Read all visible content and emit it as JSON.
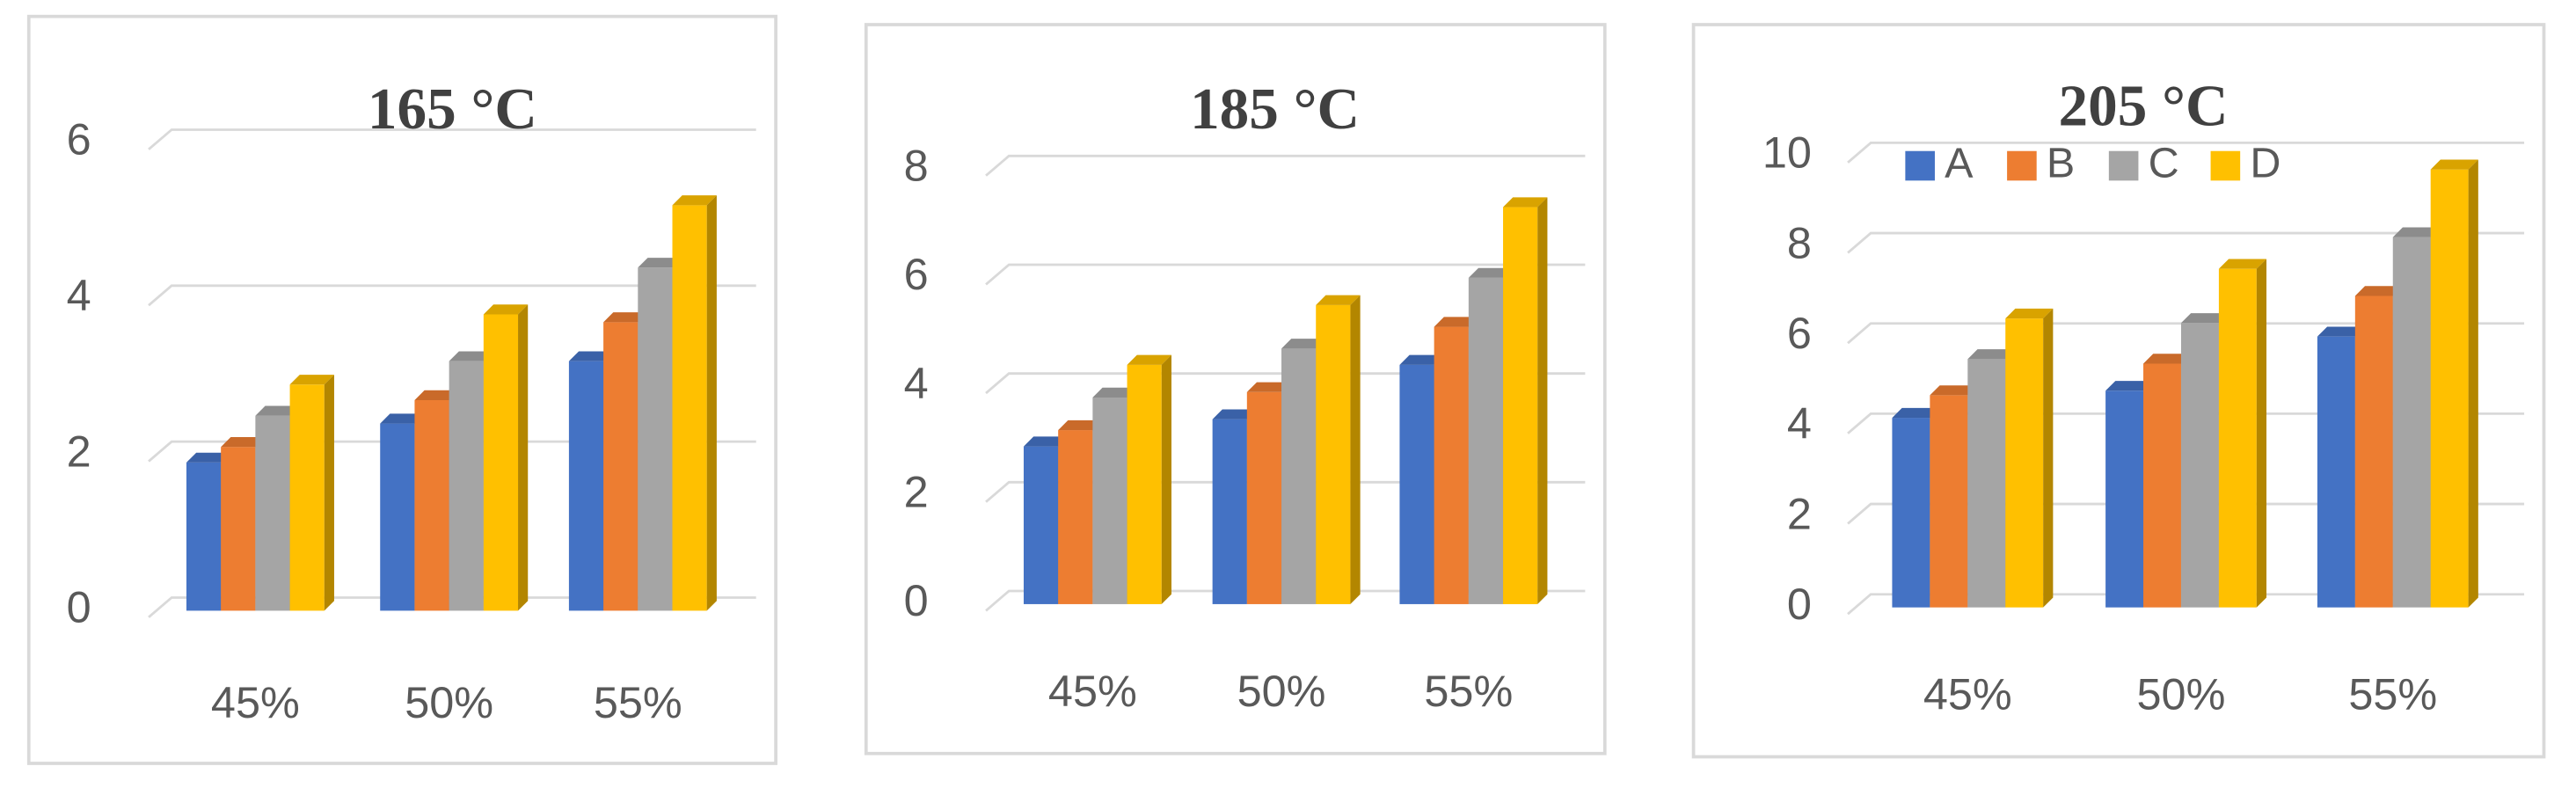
{
  "chart_data": [
    {
      "type": "bar",
      "title": "165 °C",
      "categories": [
        "45%",
        "50%",
        "55%"
      ],
      "series": [
        {
          "color": "#4472c4",
          "values": [
            1.9,
            2.4,
            3.2
          ]
        },
        {
          "color": "#ed7d31",
          "values": [
            2.1,
            2.7,
            3.7
          ]
        },
        {
          "color": "#a5a5a5",
          "values": [
            2.5,
            3.2,
            4.4
          ]
        },
        {
          "color": "#ffc000",
          "values": [
            2.9,
            3.8,
            5.2
          ]
        }
      ],
      "ylim": [
        0,
        6
      ],
      "yticks": [
        0,
        2,
        4,
        6
      ],
      "grid": true
    },
    {
      "type": "bar",
      "title": "185 °C",
      "categories": [
        "45%",
        "50%",
        "55%"
      ],
      "series": [
        {
          "color": "#4472c4",
          "values": [
            2.9,
            3.4,
            4.4
          ]
        },
        {
          "color": "#ed7d31",
          "values": [
            3.2,
            3.9,
            5.1
          ]
        },
        {
          "color": "#a5a5a5",
          "values": [
            3.8,
            4.7,
            6.0
          ]
        },
        {
          "color": "#ffc000",
          "values": [
            4.4,
            5.5,
            7.3
          ]
        }
      ],
      "ylim": [
        0,
        8
      ],
      "yticks": [
        0,
        2,
        4,
        6,
        8
      ],
      "grid": true
    },
    {
      "type": "bar",
      "title": "205 °C",
      "categories": [
        "45%",
        "50%",
        "55%"
      ],
      "series": [
        {
          "name": "A",
          "color": "#4472c4",
          "values": [
            4.2,
            4.8,
            6.0
          ]
        },
        {
          "name": "B",
          "color": "#ed7d31",
          "values": [
            4.7,
            5.4,
            6.9
          ]
        },
        {
          "name": "C",
          "color": "#a5a5a5",
          "values": [
            5.5,
            6.3,
            8.2
          ]
        },
        {
          "name": "D",
          "color": "#ffc000",
          "values": [
            6.4,
            7.5,
            9.7
          ]
        }
      ],
      "ylim": [
        0,
        10
      ],
      "yticks": [
        0,
        2,
        4,
        6,
        8,
        10
      ],
      "grid": true,
      "legend": "top"
    }
  ]
}
